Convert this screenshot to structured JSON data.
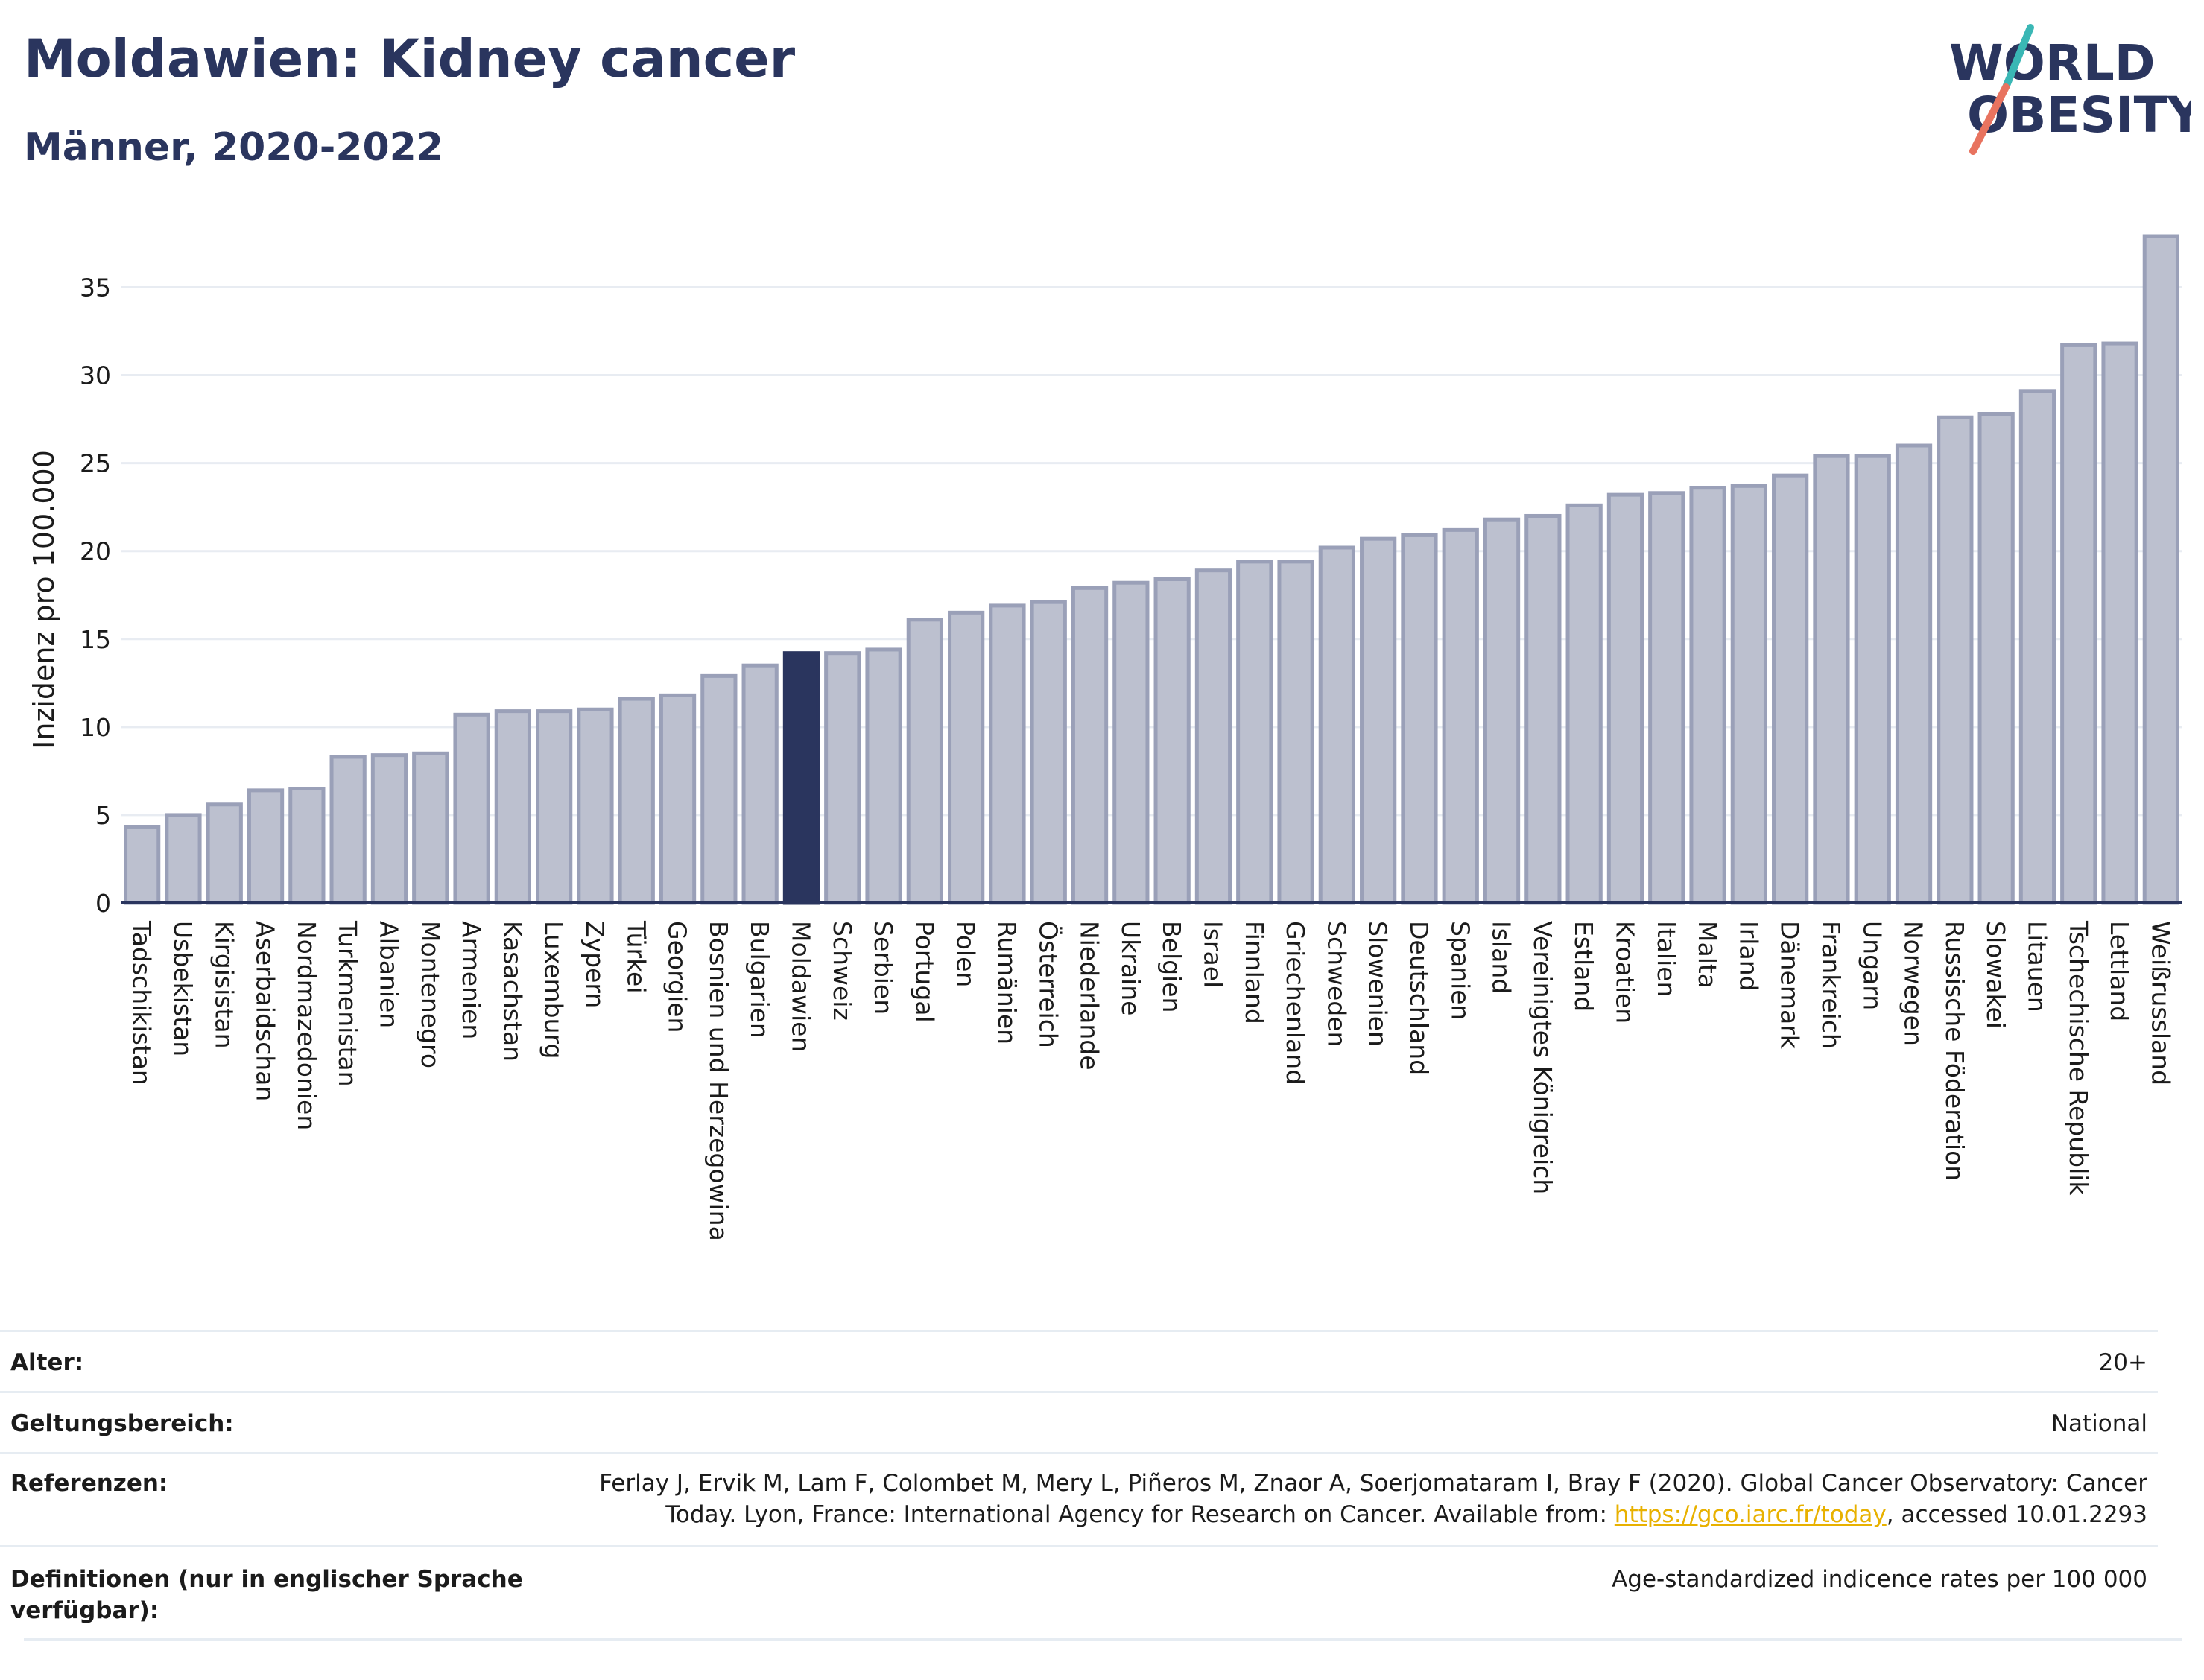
{
  "header": {
    "title": "Moldawien: Kidney cancer",
    "subtitle": "Männer, 2020-2022"
  },
  "logo": {
    "line1": "WORLD",
    "line2": "OBESITY",
    "accent_teal": "#3ab7b5",
    "accent_coral": "#e8735f"
  },
  "colors": {
    "bar": "#bcc0cf",
    "bar_stroke": "#9aa0b8",
    "highlight": "#2a355e",
    "grid": "#e8ecf2",
    "axis": "#2a355e"
  },
  "chart_data": {
    "type": "bar",
    "ylabel": "Inzidenz pro 100.000",
    "xlabel": "",
    "ylim": [
      0,
      38.5
    ],
    "yticks": [
      0,
      5,
      10,
      15,
      20,
      25,
      30,
      35
    ],
    "highlight": "Moldawien",
    "categories": [
      "Tadschikistan",
      "Usbekistan",
      "Kirgisistan",
      "Aserbaidschan",
      "Nordmazedonien",
      "Turkmenistan",
      "Albanien",
      "Montenegro",
      "Armenien",
      "Kasachstan",
      "Luxemburg",
      "Zypern",
      "Türkei",
      "Georgien",
      "Bosnien und Herzegowina",
      "Bulgarien",
      "Moldawien",
      "Schweiz",
      "Serbien",
      "Portugal",
      "Polen",
      "Rumänien",
      "Österreich",
      "Niederlande",
      "Ukraine",
      "Belgien",
      "Israel",
      "Finnland",
      "Griechenland",
      "Schweden",
      "Slowenien",
      "Deutschland",
      "Spanien",
      "Island",
      "Vereinigtes Königreich",
      "Estland",
      "Kroatien",
      "Italien",
      "Malta",
      "Irland",
      "Dänemark",
      "Frankreich",
      "Ungarn",
      "Norwegen",
      "Russische Föderation",
      "Slowakei",
      "Litauen",
      "Tschechische Republik",
      "Lettland",
      "Weißrussland"
    ],
    "values": [
      4.3,
      5.0,
      5.6,
      6.4,
      6.5,
      8.3,
      8.4,
      8.5,
      10.7,
      10.9,
      10.9,
      11.0,
      11.6,
      11.8,
      12.9,
      13.5,
      14.2,
      14.2,
      14.4,
      16.1,
      16.5,
      16.9,
      17.1,
      17.9,
      18.2,
      18.4,
      18.9,
      19.4,
      19.4,
      20.2,
      20.7,
      20.9,
      21.2,
      21.8,
      22.0,
      22.6,
      23.2,
      23.3,
      23.6,
      23.7,
      24.3,
      25.4,
      25.4,
      26.0,
      27.6,
      27.8,
      29.1,
      31.7,
      31.8,
      37.9
    ]
  },
  "info": {
    "rows": [
      {
        "label": "Alter:",
        "value": "20+"
      },
      {
        "label": "Geltungsbereich:",
        "value": "National"
      },
      {
        "label": "Referenzen:",
        "value_line1": "Ferlay J, Ervik M, Lam F, Colombet M, Mery L, Piñeros M, Znaor A, Soerjomataram I, Bray F (2020). Global Cancer Observatory: Cancer",
        "value_line2_pre": "Today. Lyon, France: International Agency for Research on Cancer. Available from: ",
        "link": "https://gco.iarc.fr/today",
        "value_line2_post": ", accessed 10.01.2293"
      },
      {
        "label": "Definitionen (nur in englischer Sprache verfügbar):",
        "value": "Age-standardized indicence rates per 100 000"
      }
    ]
  }
}
